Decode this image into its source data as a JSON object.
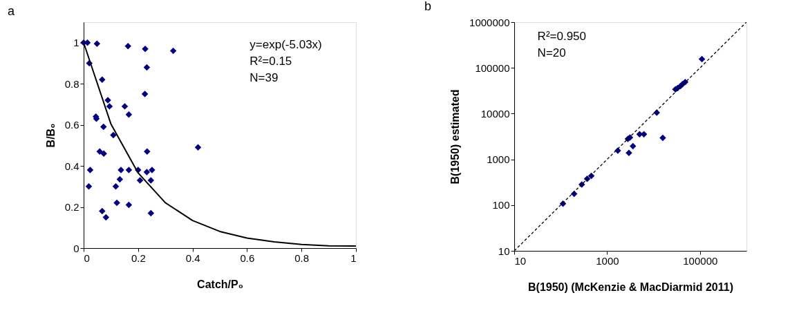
{
  "chart_data": [
    {
      "type": "scatter",
      "title": "a",
      "xlabel": "Catch/P₀",
      "ylabel": "B/B₀",
      "xlim": [
        0,
        1
      ],
      "ylim": [
        0,
        1.1
      ],
      "xticks": [
        0,
        0.2,
        0.4,
        0.6,
        0.8,
        1
      ],
      "yticks": [
        0,
        0.2,
        0.4,
        0.6,
        0.8,
        1
      ],
      "grid": false,
      "marker": "diamond",
      "annotations": [
        "y=exp(-5.03x)",
        "R²=0.15",
        "N=39"
      ],
      "series": [
        {
          "type": "scatter",
          "color": "#000080",
          "x": [
            0,
            0.014,
            0.049,
            0.163,
            0.226,
            0.329,
            0.021,
            0.232,
            0.068,
            0.225,
            0.089,
            0.095,
            0.151,
            0.166,
            0.045,
            0.047,
            0.073,
            0.109,
            0.42,
            0.059,
            0.074,
            0.233,
            0.024,
            0.137,
            0.166,
            0.232,
            0.251,
            0.207,
            0.247,
            0.133,
            0.118,
            0.019,
            0.122,
            0.166,
            0.068,
            0.082,
            0.247,
            0.2
          ],
          "values": [
            1.0,
            1.0,
            0.995,
            0.983,
            0.97,
            0.96,
            0.9,
            0.88,
            0.82,
            0.75,
            0.72,
            0.69,
            0.69,
            0.65,
            0.64,
            0.63,
            0.59,
            0.55,
            0.49,
            0.47,
            0.46,
            0.47,
            0.38,
            0.38,
            0.38,
            0.37,
            0.38,
            0.33,
            0.33,
            0.335,
            0.3,
            0.3,
            0.22,
            0.21,
            0.18,
            0.15,
            0.17,
            0.38
          ]
        },
        {
          "type": "line",
          "color": "#000000",
          "line_style": "solid",
          "marker": "none",
          "x": [
            0,
            0.1,
            0.2,
            0.3,
            0.4,
            0.5,
            0.6,
            0.7,
            0.8,
            0.9,
            1
          ],
          "values": [
            1,
            0.605,
            0.366,
            0.221,
            0.134,
            0.081,
            0.049,
            0.03,
            0.018,
            0.011,
            0.01
          ]
        }
      ]
    },
    {
      "type": "scatter",
      "title": "b",
      "xlabel": "B(1950) (McKenzie & MacDiarmid 2011)",
      "ylabel": "B(1950) estimated",
      "log": "xy",
      "xlim": [
        10,
        1000000
      ],
      "ylim": [
        10,
        1000000
      ],
      "xticks": [
        10,
        1000,
        100000
      ],
      "yticks": [
        10,
        100,
        1000,
        10000,
        100000,
        1000000
      ],
      "grid": false,
      "marker": "diamond",
      "annotations": [
        "R²=0.950",
        "N=20"
      ],
      "series": [
        {
          "type": "scatter",
          "color": "#000080",
          "x": [
            112,
            195,
            285,
            372,
            457,
            1700,
            2800,
            3100,
            3600,
            2950,
            5000,
            6200,
            15800,
            11700,
            29500,
            33000,
            38000,
            42000,
            48000,
            110000
          ],
          "values": [
            107,
            177,
            282,
            377,
            437,
            1550,
            2800,
            3000,
            1950,
            1380,
            3550,
            3550,
            2950,
            10500,
            34000,
            36000,
            40000,
            44000,
            49000,
            155000
          ]
        },
        {
          "type": "line",
          "color": "#000000",
          "line_style": "dashed",
          "marker": "none",
          "x": [
            10,
            1000000
          ],
          "values": [
            10,
            1000000
          ]
        }
      ]
    }
  ]
}
